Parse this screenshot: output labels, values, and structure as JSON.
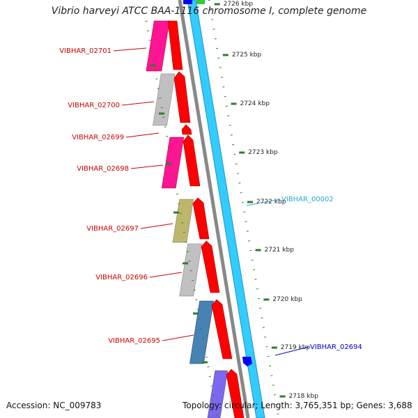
{
  "title": "Vibrio harveyi ATCC BAA-1116 chromosome I, complete genome",
  "footer": {
    "accession": "Accession: NC_009783",
    "topology": "Topology: circular; Length: 3,765,351 bp; Genes: 3,688"
  },
  "ruler": {
    "ticks": [
      "2726 kbp",
      "2725 kbp",
      "2724 kbp",
      "2723 kbp",
      "2722 kbp",
      "2721 kbp",
      "2720 kbp",
      "2719 kbp",
      "2718 kbp"
    ]
  },
  "gene_labels": {
    "left": [
      "VIBHAR_02701",
      "VIBHAR_02700",
      "VIBHAR_02699",
      "VIBHAR_02698",
      "VIBHAR_02697",
      "VIBHAR_02696",
      "VIBHAR_02695"
    ],
    "right": [
      "VIBHAR_00002",
      "VIBHAR_02694"
    ]
  },
  "colors": {
    "red": "#ff0000",
    "magenta": "#ff1493",
    "gray": "#c0c0c0",
    "olive": "#bdb76b",
    "steelblue": "#4682b4",
    "purple": "#7b68ee",
    "cyan": "#33ccff",
    "blue": "#0000ff",
    "green_tick": "#2e7d2e",
    "label_red": "#cc0000",
    "label_cyan": "#22aacc",
    "label_blue": "#0000cc"
  }
}
